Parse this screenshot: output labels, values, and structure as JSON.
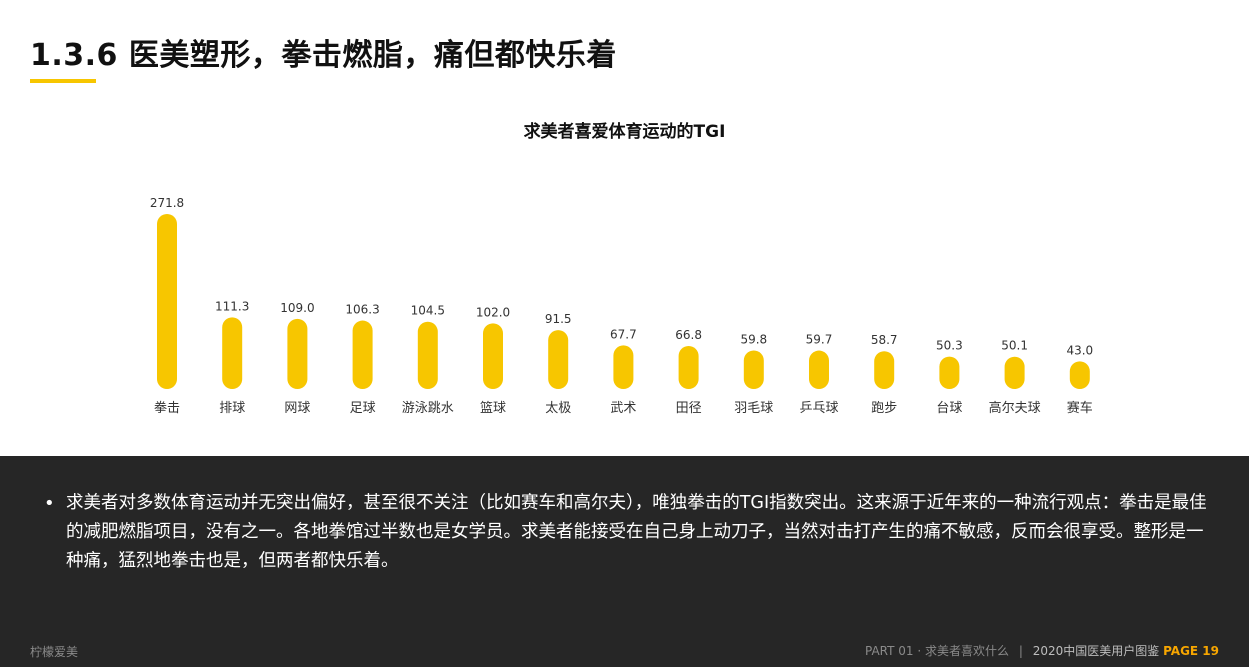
{
  "page": {
    "title": "1.3.6 医美塑形，拳击燃脂，痛但都快乐着",
    "accent_color": "#f7c600"
  },
  "chart_data": {
    "type": "bar",
    "title": "求美者喜爱体育运动的TGI",
    "categories": [
      "拳击",
      "排球",
      "网球",
      "足球",
      "游泳跳水",
      "篮球",
      "太极",
      "武术",
      "田径",
      "羽毛球",
      "乒乓球",
      "跑步",
      "台球",
      "高尔夫球",
      "赛车"
    ],
    "values": [
      271.8,
      111.3,
      109.0,
      106.3,
      104.5,
      102.0,
      91.5,
      67.7,
      66.8,
      59.8,
      59.7,
      58.7,
      50.3,
      50.1,
      43.0
    ],
    "value_labels": [
      "271.8",
      "111.3",
      "109.0",
      "106.3",
      "104.5",
      "102.0",
      "91.5",
      "67.7",
      "66.8",
      "59.8",
      "59.7",
      "58.7",
      "50.3",
      "50.1",
      "43.0"
    ],
    "bar_color": "#f7c600",
    "grid": false
  },
  "note": {
    "bullet": "•",
    "text": "求美者对多数体育运动并无突出偏好，甚至很不关注（比如赛车和高尔夫），唯独拳击的TGI指数突出。这来源于近年来的一种流行观点：拳击是最佳的减肥燃脂项目，没有之一。各地拳馆过半数也是女学员。求美者能接受在自己身上动刀子，当然对击打产生的痛不敏感，反而会很享受。整形是一种痛，猛烈地拳击也是，但两者都快乐着。"
  },
  "footer": {
    "brand": "柠檬爱美",
    "part": "PART 01 · 求美者喜欢什么",
    "separator": "|",
    "report": "2020中国医美用户图鉴",
    "page_label": "PAGE 19"
  }
}
